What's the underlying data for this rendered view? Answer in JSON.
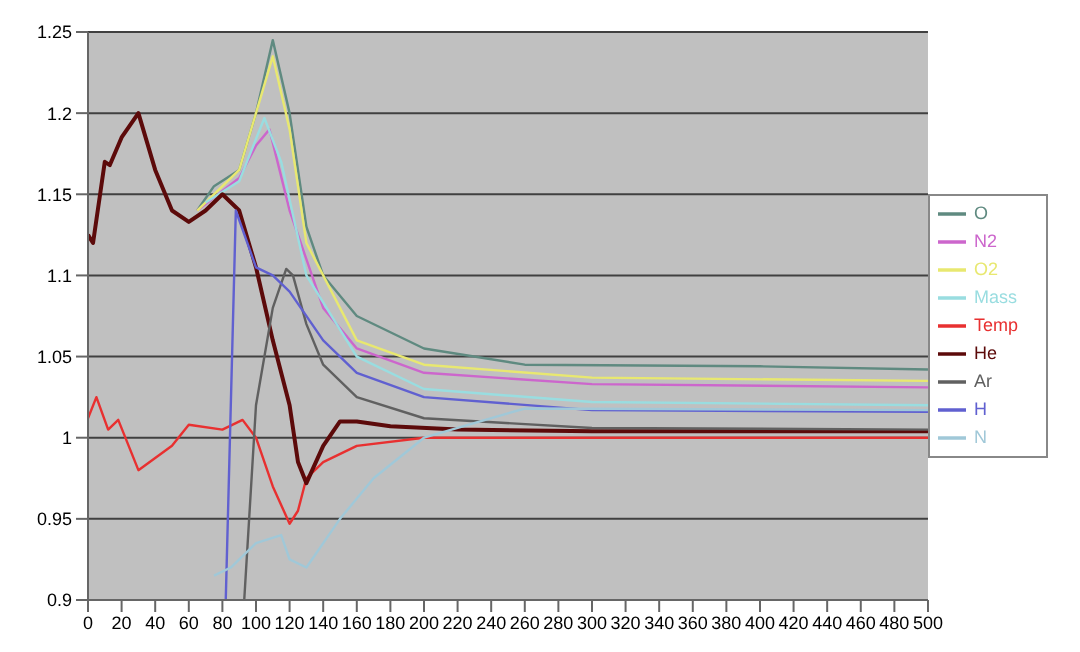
{
  "chart_data": {
    "type": "line",
    "xlim": [
      0,
      500
    ],
    "xticks": [
      0,
      20,
      40,
      60,
      80,
      100,
      120,
      140,
      160,
      180,
      200,
      220,
      240,
      260,
      280,
      300,
      320,
      340,
      360,
      380,
      400,
      420,
      440,
      460,
      480,
      500
    ],
    "ylim": [
      0.9,
      1.25
    ],
    "yticks": [
      0.9,
      0.95,
      1,
      1.05,
      1.1,
      1.15,
      1.2,
      1.25
    ],
    "grid": "y",
    "legend": "right",
    "marker": "none",
    "line_style": "solid",
    "series": [
      {
        "name": "O",
        "color": "#5f8a80",
        "x": [
          65,
          75,
          90,
          100,
          110,
          120,
          130,
          140,
          160,
          200,
          260,
          400,
          500
        ],
        "values": [
          1.14,
          1.155,
          1.165,
          1.2,
          1.245,
          1.2,
          1.13,
          1.1,
          1.075,
          1.055,
          1.045,
          1.044,
          1.042
        ]
      },
      {
        "name": "N2",
        "color": "#cc66cc",
        "x": [
          65,
          90,
          100,
          108,
          120,
          140,
          160,
          200,
          300,
          500
        ],
        "values": [
          1.14,
          1.16,
          1.18,
          1.19,
          1.14,
          1.08,
          1.055,
          1.04,
          1.033,
          1.031
        ]
      },
      {
        "name": "O2",
        "color": "#e8e870",
        "x": [
          65,
          90,
          100,
          110,
          120,
          130,
          160,
          200,
          300,
          500
        ],
        "values": [
          1.14,
          1.165,
          1.2,
          1.235,
          1.19,
          1.12,
          1.06,
          1.045,
          1.037,
          1.035
        ]
      },
      {
        "name": "Mass",
        "color": "#99dde0",
        "x": [
          70,
          90,
          105,
          115,
          130,
          160,
          200,
          300,
          500
        ],
        "values": [
          1.145,
          1.158,
          1.197,
          1.17,
          1.1,
          1.05,
          1.03,
          1.022,
          1.02
        ]
      },
      {
        "name": "Temp",
        "color": "#e83030",
        "x": [
          0,
          5,
          12,
          18,
          30,
          50,
          60,
          80,
          92,
          100,
          110,
          120,
          125,
          130,
          140,
          160,
          200,
          500
        ],
        "values": [
          1.012,
          1.025,
          1.005,
          1.011,
          0.98,
          0.995,
          1.008,
          1.005,
          1.011,
          1.0,
          0.97,
          0.947,
          0.955,
          0.975,
          0.985,
          0.995,
          1.0,
          1.0
        ]
      },
      {
        "name": "He",
        "color": "#5c0a0a",
        "x": [
          0,
          3,
          10,
          13,
          20,
          30,
          40,
          50,
          60,
          70,
          80,
          90,
          100,
          110,
          120,
          125,
          130,
          140,
          150,
          160,
          180,
          220,
          300,
          500
        ],
        "values": [
          1.125,
          1.12,
          1.17,
          1.168,
          1.185,
          1.2,
          1.165,
          1.14,
          1.133,
          1.14,
          1.15,
          1.14,
          1.105,
          1.06,
          1.02,
          0.985,
          0.972,
          0.995,
          1.01,
          1.01,
          1.007,
          1.005,
          1.004,
          1.004
        ]
      },
      {
        "name": "Ar",
        "color": "#606060",
        "x": [
          93,
          100,
          110,
          118,
          122,
          130,
          140,
          160,
          200,
          300,
          500
        ],
        "values": [
          0.9,
          1.02,
          1.08,
          1.104,
          1.1,
          1.07,
          1.045,
          1.025,
          1.012,
          1.006,
          1.005
        ]
      },
      {
        "name": "H",
        "color": "#6060d0",
        "x": [
          82,
          88,
          100,
          110,
          120,
          140,
          160,
          200,
          300,
          500
        ],
        "values": [
          0.9,
          1.14,
          1.105,
          1.1,
          1.09,
          1.06,
          1.04,
          1.025,
          1.017,
          1.016
        ]
      },
      {
        "name": "N",
        "color": "#a0c8d8",
        "x": [
          75,
          85,
          100,
          115,
          120,
          130,
          150,
          170,
          200,
          260,
          500
        ],
        "values": [
          0.915,
          0.92,
          0.935,
          0.94,
          0.925,
          0.92,
          0.95,
          0.975,
          1.0,
          1.018,
          1.017
        ]
      }
    ]
  }
}
